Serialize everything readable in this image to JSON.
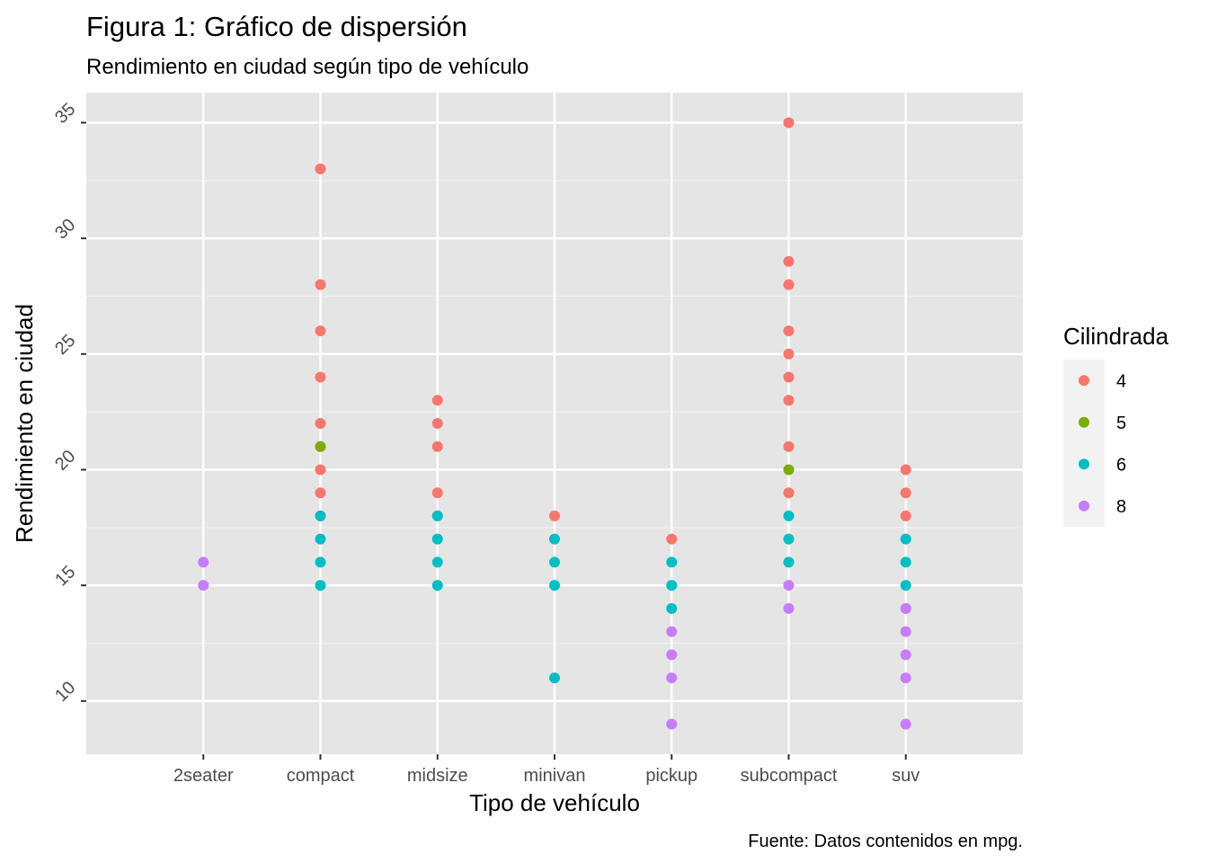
{
  "chart_data": {
    "type": "scatter",
    "title": "Figura 1: Gráfico de dispersión",
    "subtitle": "Rendimiento en ciudad según tipo de vehículo",
    "xlabel": "Tipo de vehículo",
    "ylabel": "Rendimiento en ciudad",
    "caption": "Fuente: Datos contenidos en mpg.",
    "categories": [
      "2seater",
      "compact",
      "midsize",
      "minivan",
      "pickup",
      "subcompact",
      "suv"
    ],
    "ylim": [
      7.7,
      36.3
    ],
    "yticks": [
      10,
      15,
      20,
      25,
      30,
      35
    ],
    "yticks_labels": [
      "10",
      "15",
      "20",
      "25",
      "30",
      "35"
    ],
    "grid": true,
    "background": "#e5e5e5",
    "legend": {
      "title": "Cilindrada",
      "placement": "right",
      "entries": [
        {
          "label": "4",
          "color": "#f8766d"
        },
        {
          "label": "5",
          "color": "#7cae00"
        },
        {
          "label": "6",
          "color": "#00bfc4"
        },
        {
          "label": "8",
          "color": "#c77cff"
        }
      ]
    },
    "series": [
      {
        "name": "4",
        "color": "#f8766d",
        "points": [
          [
            "compact",
            33
          ],
          [
            "compact",
            28
          ],
          [
            "compact",
            26
          ],
          [
            "compact",
            24
          ],
          [
            "compact",
            22
          ],
          [
            "compact",
            21
          ],
          [
            "compact",
            20
          ],
          [
            "compact",
            19
          ],
          [
            "compact",
            18
          ],
          [
            "midsize",
            23
          ],
          [
            "midsize",
            22
          ],
          [
            "midsize",
            21
          ],
          [
            "midsize",
            19
          ],
          [
            "midsize",
            18
          ],
          [
            "minivan",
            18
          ],
          [
            "pickup",
            17
          ],
          [
            "subcompact",
            35
          ],
          [
            "subcompact",
            29
          ],
          [
            "subcompact",
            28
          ],
          [
            "subcompact",
            26
          ],
          [
            "subcompact",
            25
          ],
          [
            "subcompact",
            24
          ],
          [
            "subcompact",
            23
          ],
          [
            "subcompact",
            21
          ],
          [
            "subcompact",
            19
          ],
          [
            "suv",
            20
          ],
          [
            "suv",
            19
          ],
          [
            "suv",
            18
          ]
        ]
      },
      {
        "name": "5",
        "color": "#7cae00",
        "points": [
          [
            "compact",
            21
          ],
          [
            "subcompact",
            20
          ]
        ]
      },
      {
        "name": "6",
        "color": "#00bfc4",
        "points": [
          [
            "compact",
            18
          ],
          [
            "compact",
            17
          ],
          [
            "compact",
            16
          ],
          [
            "compact",
            15
          ],
          [
            "midsize",
            18
          ],
          [
            "midsize",
            17
          ],
          [
            "midsize",
            16
          ],
          [
            "midsize",
            15
          ],
          [
            "minivan",
            17
          ],
          [
            "minivan",
            16
          ],
          [
            "minivan",
            15
          ],
          [
            "minivan",
            11
          ],
          [
            "pickup",
            16
          ],
          [
            "pickup",
            15
          ],
          [
            "pickup",
            14
          ],
          [
            "subcompact",
            18
          ],
          [
            "subcompact",
            17
          ],
          [
            "subcompact",
            16
          ],
          [
            "suv",
            17
          ],
          [
            "suv",
            16
          ],
          [
            "suv",
            15
          ],
          [
            "suv",
            14
          ]
        ]
      },
      {
        "name": "8",
        "color": "#c77cff",
        "points": [
          [
            "2seater",
            16
          ],
          [
            "2seater",
            15
          ],
          [
            "pickup",
            13
          ],
          [
            "pickup",
            12
          ],
          [
            "pickup",
            11
          ],
          [
            "pickup",
            9
          ],
          [
            "subcompact",
            15
          ],
          [
            "subcompact",
            14
          ],
          [
            "suv",
            14
          ],
          [
            "suv",
            13
          ],
          [
            "suv",
            12
          ],
          [
            "suv",
            11
          ],
          [
            "suv",
            9
          ]
        ]
      }
    ]
  }
}
